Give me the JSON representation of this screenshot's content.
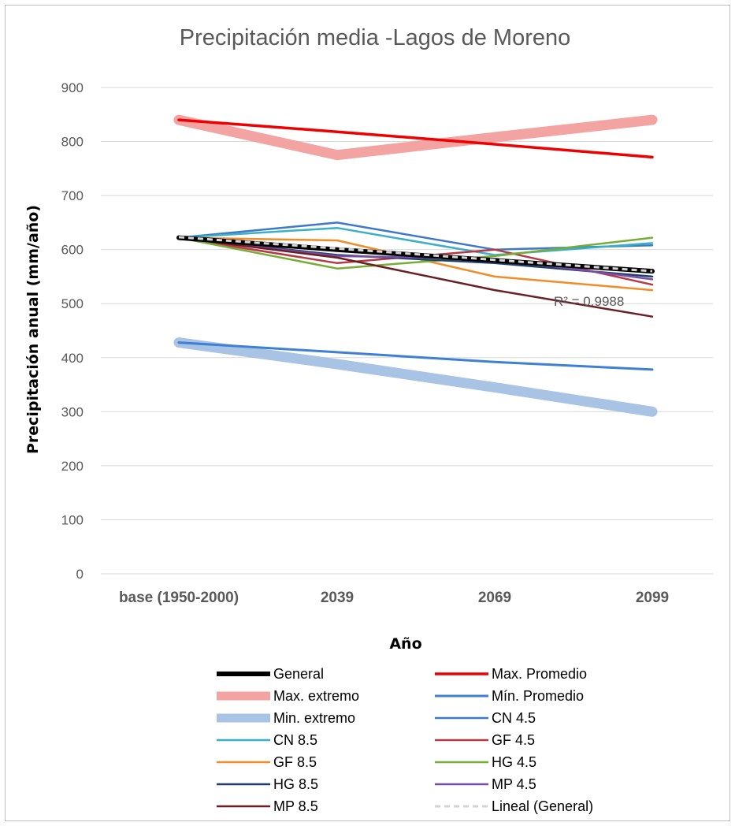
{
  "chart_data": {
    "type": "line",
    "title": "Precipitación media -Lagos de Moreno",
    "xlabel": "Año",
    "ylabel": "Precipitación anual (mm/año)",
    "categories": [
      "base (1950-2000)",
      "2039",
      "2069",
      "2099"
    ],
    "ylim": [
      0,
      900
    ],
    "yticks": [
      "0",
      "100",
      "200",
      "300",
      "400",
      "500",
      "600",
      "700",
      "800",
      "900"
    ],
    "grid": true,
    "legend_position": "bottom",
    "annotation": "R² = 0.9988",
    "series": [
      {
        "name": "Máx. extremo",
        "values": [
          840,
          775,
          808,
          840
        ],
        "color": "#f4a3a3",
        "weight": 13,
        "dash": ""
      },
      {
        "name": "Mín. extremo",
        "values": [
          428,
          388,
          345,
          300
        ],
        "color": "#a9c3e5",
        "weight": 13,
        "dash": ""
      },
      {
        "name": "Máx. Promedio",
        "values": [
          840,
          818,
          795,
          771
        ],
        "color": "#ee0000",
        "weight": 3.5,
        "dash": ""
      },
      {
        "name": "Mín. Promedio",
        "values": [
          428,
          410,
          392,
          378
        ],
        "color": "#3f7fd4",
        "weight": 3,
        "dash": ""
      },
      {
        "name": "CN 4.5",
        "values": [
          622,
          650,
          600,
          608
        ],
        "color": "#3d78c9",
        "weight": 2.5,
        "dash": ""
      },
      {
        "name": "CN 8.5",
        "values": [
          622,
          640,
          590,
          612
        ],
        "color": "#39b0c6",
        "weight": 2.5,
        "dash": ""
      },
      {
        "name": "GF 4.5",
        "values": [
          622,
          575,
          600,
          535
        ],
        "color": "#b53a45",
        "weight": 2.5,
        "dash": ""
      },
      {
        "name": "GF 8.5",
        "values": [
          622,
          617,
          550,
          525
        ],
        "color": "#f28c28",
        "weight": 2.5,
        "dash": ""
      },
      {
        "name": "HG 4.5",
        "values": [
          622,
          565,
          588,
          622
        ],
        "color": "#77ad35",
        "weight": 2.5,
        "dash": ""
      },
      {
        "name": "HG 8.5",
        "values": [
          622,
          590,
          575,
          550
        ],
        "color": "#1f3f6e",
        "weight": 2.5,
        "dash": ""
      },
      {
        "name": "MP 4.5",
        "values": [
          622,
          588,
          583,
          545
        ],
        "color": "#7a4ea6",
        "weight": 2.5,
        "dash": ""
      },
      {
        "name": "MP 8.5",
        "values": [
          622,
          585,
          525,
          476
        ],
        "color": "#6b1f24",
        "weight": 2.5,
        "dash": ""
      },
      {
        "name": "General",
        "values": [
          622,
          600,
          580,
          560
        ],
        "color": "#000000",
        "weight": 6,
        "dash": ""
      },
      {
        "name": "Lineal (General)",
        "values": [
          623,
          602,
          581,
          560
        ],
        "color": "#d4d4d4",
        "weight": 3,
        "dash": "7,5"
      }
    ],
    "legend": [
      {
        "name": "General",
        "color": "#000000",
        "weight": 6,
        "dash": ""
      },
      {
        "name": "Max. Promedio",
        "color": "#ee0000",
        "weight": 3.5,
        "dash": ""
      },
      {
        "name": "Max. extremo",
        "color": "#f4a3a3",
        "weight": 11,
        "dash": ""
      },
      {
        "name": "Mín. Promedio",
        "color": "#3f7fd4",
        "weight": 3,
        "dash": ""
      },
      {
        "name": "Min. extremo",
        "color": "#a9c3e5",
        "weight": 11,
        "dash": ""
      },
      {
        "name": "CN 4.5",
        "color": "#3d78c9",
        "weight": 2.5,
        "dash": ""
      },
      {
        "name": "CN 8.5",
        "color": "#39b0c6",
        "weight": 2.5,
        "dash": ""
      },
      {
        "name": "GF 4.5",
        "color": "#b53a45",
        "weight": 2.5,
        "dash": ""
      },
      {
        "name": "GF 8.5",
        "color": "#f28c28",
        "weight": 2.5,
        "dash": ""
      },
      {
        "name": "HG 4.5",
        "color": "#77ad35",
        "weight": 2.5,
        "dash": ""
      },
      {
        "name": "HG 8.5",
        "color": "#1f3f6e",
        "weight": 2.5,
        "dash": ""
      },
      {
        "name": "MP 4.5",
        "color": "#7a4ea6",
        "weight": 2.5,
        "dash": ""
      },
      {
        "name": "MP 8.5",
        "color": "#6b1f24",
        "weight": 2.5,
        "dash": ""
      },
      {
        "name": "Lineal (General)",
        "color": "#d4d4d4",
        "weight": 3,
        "dash": "7,5"
      }
    ]
  }
}
